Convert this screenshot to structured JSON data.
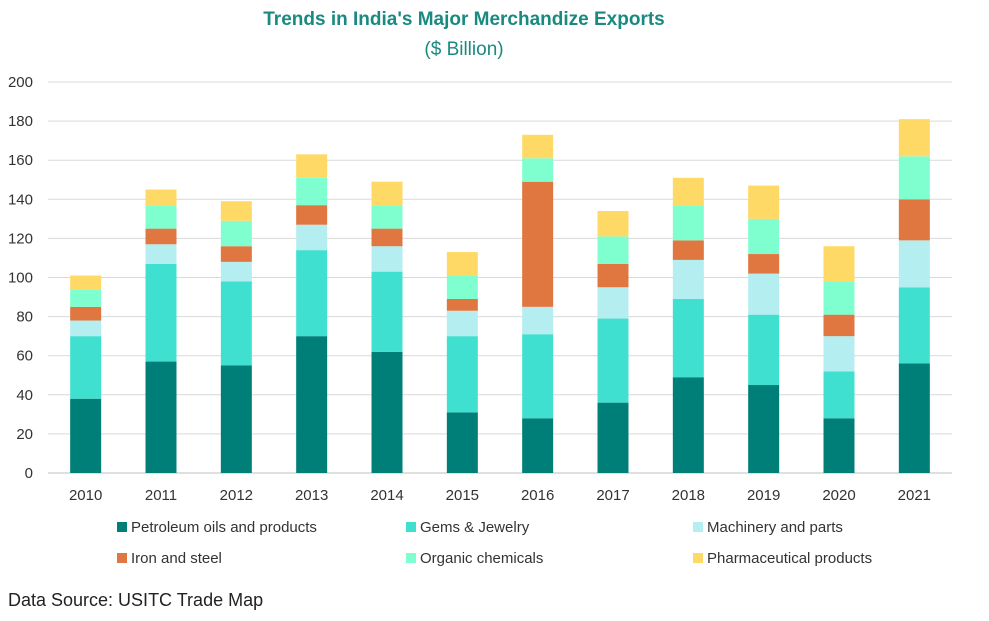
{
  "colors": {
    "title": "#1A8A80",
    "grid": "#D9D9D9",
    "axis": "#BFBFBF",
    "series": [
      "#007F78",
      "#40E0D0",
      "#B4EEF0",
      "#E07640",
      "#7FFFD0",
      "#FFD966"
    ]
  },
  "source": "Data Source: USITC Trade Map",
  "chart_data": {
    "type": "bar",
    "stacked": true,
    "title": "Trends in India's Major Merchandize Exports",
    "subtitle": "($ Billion)",
    "categories": [
      "2010",
      "2011",
      "2012",
      "2013",
      "2014",
      "2015",
      "2016",
      "2017",
      "2018",
      "2019",
      "2020",
      "2021"
    ],
    "yticks": [
      0,
      20,
      40,
      60,
      80,
      100,
      120,
      140,
      160,
      180,
      200
    ],
    "ylim": [
      0,
      200
    ],
    "grid": true,
    "legend_position": "bottom",
    "series": [
      {
        "name": "Petroleum oils and products",
        "values": [
          38,
          57,
          55,
          70,
          62,
          31,
          28,
          36,
          49,
          45,
          28,
          56
        ]
      },
      {
        "name": "Gems & Jewelry",
        "values": [
          32,
          50,
          43,
          44,
          41,
          39,
          43,
          43,
          40,
          36,
          24,
          39
        ]
      },
      {
        "name": "Machinery and parts",
        "values": [
          8,
          10,
          10,
          13,
          13,
          13,
          14,
          16,
          20,
          21,
          18,
          24
        ]
      },
      {
        "name": "Iron and steel",
        "values": [
          7,
          8,
          8,
          10,
          9,
          6,
          64,
          12,
          10,
          10,
          11,
          21
        ]
      },
      {
        "name": "Organic chemicals",
        "values": [
          9,
          12,
          13,
          14,
          12,
          12,
          12,
          14,
          18,
          18,
          17,
          22
        ]
      },
      {
        "name": "Pharmaceutical products",
        "values": [
          7,
          8,
          10,
          12,
          12,
          12,
          12,
          13,
          14,
          17,
          18,
          19
        ]
      }
    ]
  }
}
